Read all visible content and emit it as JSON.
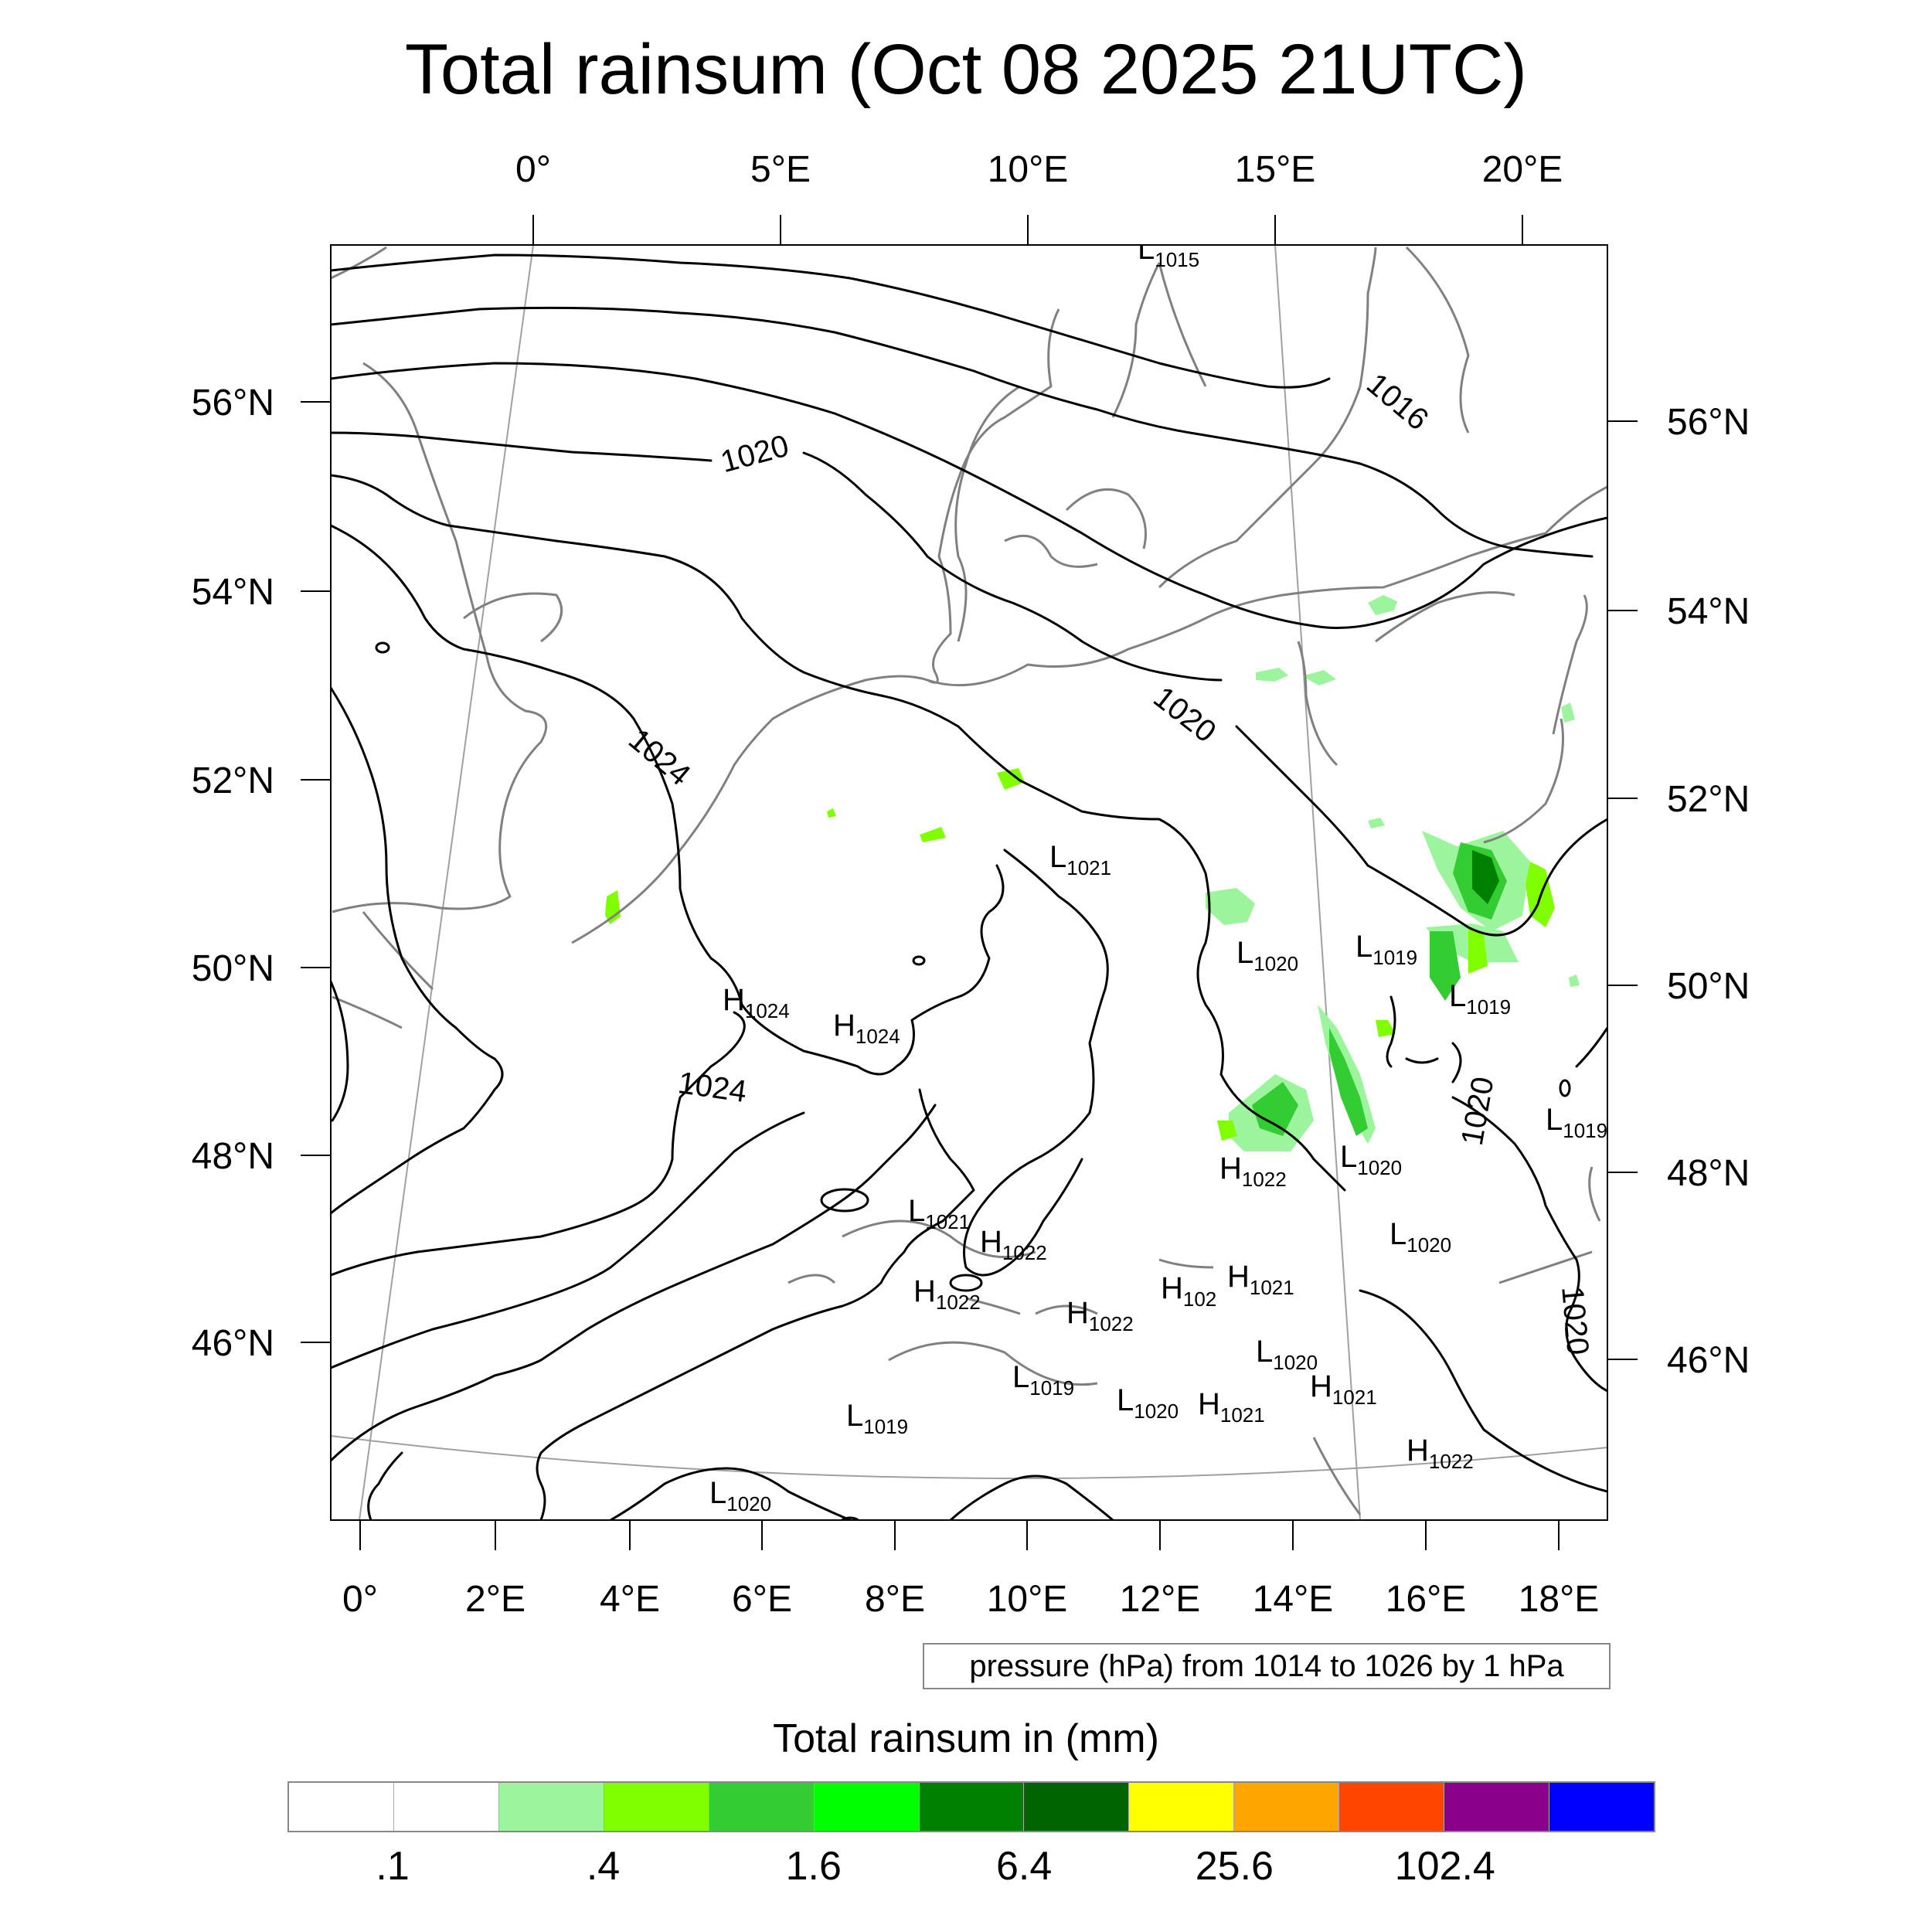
{
  "title": "Total rainsum (Oct 08 2025 21UTC)",
  "map": {
    "projection": "lambert-conformal",
    "top_lon_labels": [
      "0°",
      "5°E",
      "10°E",
      "15°E",
      "20°E"
    ],
    "bottom_lon_labels": [
      "0°",
      "2°E",
      "4°E",
      "6°E",
      "8°E",
      "10°E",
      "12°E",
      "14°E",
      "16°E",
      "18°E"
    ],
    "left_lat_labels": [
      "56°N",
      "54°N",
      "52°N",
      "50°N",
      "48°N",
      "46°N"
    ],
    "right_lat_labels": [
      "56°N",
      "54°N",
      "52°N",
      "50°N",
      "48°N",
      "46°N"
    ],
    "isobar_labels": [
      "1016",
      "1020",
      "1020",
      "1024",
      "1024",
      "1020",
      "1020"
    ],
    "pressure_centers": [
      {
        "type": "L",
        "value": "1015"
      },
      {
        "type": "L",
        "value": "1021"
      },
      {
        "type": "L",
        "value": "1020"
      },
      {
        "type": "L",
        "value": "1019"
      },
      {
        "type": "L",
        "value": "1019"
      },
      {
        "type": "H",
        "value": "1024"
      },
      {
        "type": "H",
        "value": "1024"
      },
      {
        "type": "L",
        "value": "1019"
      },
      {
        "type": "H",
        "value": "1022"
      },
      {
        "type": "L",
        "value": "1020"
      },
      {
        "type": "L",
        "value": "1021"
      },
      {
        "type": "H",
        "value": "1022"
      },
      {
        "type": "L",
        "value": "1020"
      },
      {
        "type": "H",
        "value": "1022"
      },
      {
        "type": "H",
        "value": "102"
      },
      {
        "type": "H",
        "value": "1021"
      },
      {
        "type": "H",
        "value": "1022"
      },
      {
        "type": "L",
        "value": "1020"
      },
      {
        "type": "L",
        "value": "1019"
      },
      {
        "type": "L",
        "value": "1020"
      },
      {
        "type": "H",
        "value": "1021"
      },
      {
        "type": "H",
        "value": "1021"
      },
      {
        "type": "L",
        "value": "1019"
      },
      {
        "type": "H",
        "value": "1022"
      },
      {
        "type": "L",
        "value": "1020"
      }
    ],
    "contour_colors": {
      "isobar": "#000000",
      "coast": "#808080",
      "grid": "#a0a0a0"
    }
  },
  "pressure_note": "pressure (hPa) from 1014 to 1026 by 1 hPa",
  "colorbar": {
    "title": "Total rainsum in (mm)",
    "colors": [
      "#ffffff",
      "#ffffff",
      "#9cf59c",
      "#80ff00",
      "#33cc33",
      "#00ff00",
      "#008000",
      "#006400",
      "#ffff00",
      "#ffa500",
      "#ff4500",
      "#8b008b",
      "#0000ff"
    ],
    "labels": [
      ".1",
      ".4",
      "1.6",
      "6.4",
      "25.6",
      "102.4"
    ]
  }
}
